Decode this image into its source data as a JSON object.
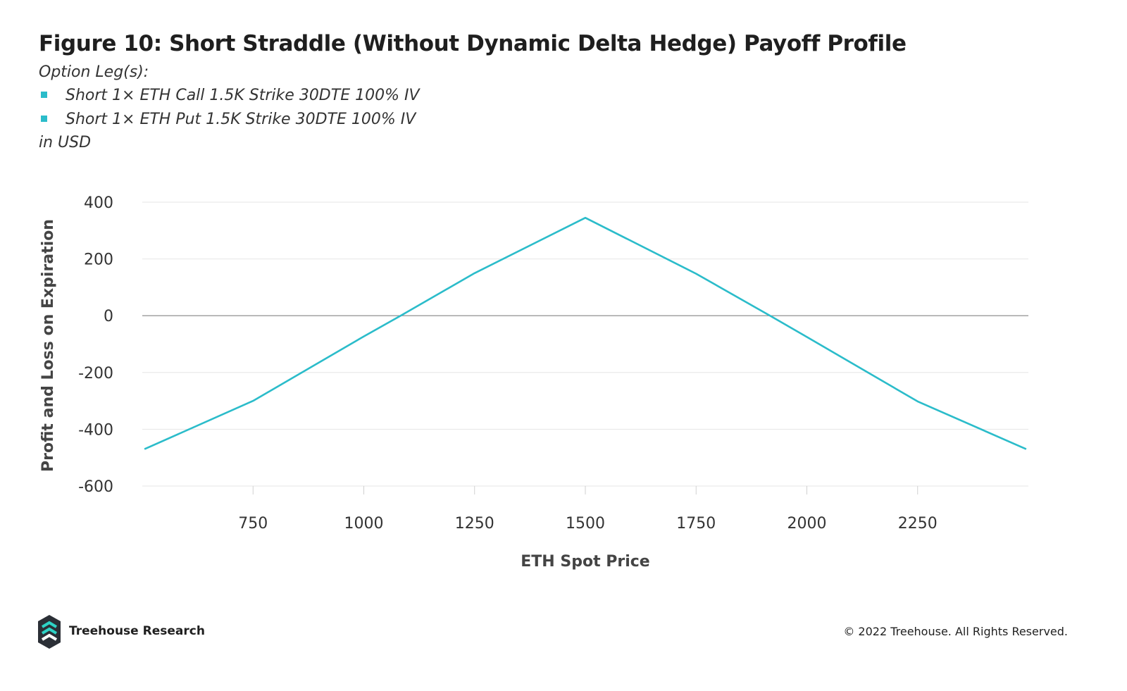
{
  "header": {
    "title": "Figure 10: Short Straddle (Without Dynamic Delta Hedge) Payoff Profile",
    "subtitle": "Option Leg(s):",
    "legs": [
      "Short 1× ETH Call 1.5K Strike 30DTE 100% IV",
      "Short 1× ETH Put 1.5K Strike 30DTE 100% IV"
    ],
    "units": "in USD"
  },
  "colors": {
    "line": "#2bbcca",
    "grid": "#e6e6e6",
    "zero_line": "#999999",
    "logo_dark": "#2b2f36",
    "logo_accent": "#2ed3c6"
  },
  "chart_data": {
    "type": "line",
    "xlabel": "ETH Spot Price",
    "ylabel": "Profit and Loss on Expiration",
    "xlim": [
      500,
      2500
    ],
    "ylim": [
      -600,
      400
    ],
    "xticks": [
      750,
      1000,
      1250,
      1500,
      1750,
      2000,
      2250
    ],
    "yticks": [
      400,
      200,
      0,
      -200,
      -400,
      -600
    ],
    "grid": true,
    "series": [
      {
        "values": [
          [
            505,
            -470
          ],
          [
            750,
            -300
          ],
          [
            1000,
            -73
          ],
          [
            1083,
            0
          ],
          [
            1250,
            150
          ],
          [
            1500,
            345
          ],
          [
            1750,
            148
          ],
          [
            1917,
            0
          ],
          [
            2000,
            -75
          ],
          [
            2250,
            -302
          ],
          [
            2495,
            -470
          ]
        ]
      }
    ]
  },
  "footer": {
    "brand": "Treehouse Research",
    "copyright": "© 2022 Treehouse. All Rights Reserved.",
    "logo_icon": "treehouse-logo-icon"
  }
}
